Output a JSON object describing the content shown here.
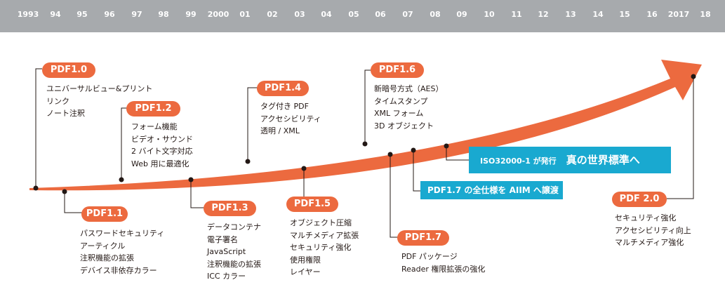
{
  "years": [
    "1993",
    "94",
    "95",
    "96",
    "97",
    "98",
    "99",
    "2000",
    "01",
    "02",
    "03",
    "04",
    "05",
    "06",
    "07",
    "08",
    "09",
    "10",
    "11",
    "12",
    "13",
    "14",
    "15",
    "16",
    "2017",
    "18"
  ],
  "versions": [
    {
      "label": "PDF1.0",
      "features": [
        "ユニバーサルビュー&プリント",
        "リンク",
        "ノート注釈"
      ]
    },
    {
      "label": "PDF1.1",
      "features": [
        "パスワードセキュリティ",
        "アーティクル",
        "注釈機能の拡張",
        "デバイス非依存カラー"
      ]
    },
    {
      "label": "PDF1.2",
      "features": [
        "フォーム機能",
        "ビデオ・サウンド",
        "2 バイト文字対応",
        "Web 用に最適化"
      ]
    },
    {
      "label": "PDF1.3",
      "features": [
        "データコンテナ",
        "電子署名",
        "JavaScript",
        "注釈機能の拡張",
        "ICC カラー"
      ]
    },
    {
      "label": "PDF1.4",
      "features": [
        "タグ付き PDF",
        "アクセシビリティ",
        "透明 / XML"
      ]
    },
    {
      "label": "PDF1.5",
      "features": [
        "オブジェクト圧縮",
        "マルチメディア拡張",
        "セキュリティ強化",
        "使用権限",
        "レイヤー"
      ]
    },
    {
      "label": "PDF1.6",
      "features": [
        "新暗号方式（AES）",
        "タイムスタンプ",
        "XML フォーム",
        "3D オブジェクト"
      ]
    },
    {
      "label": "PDF1.7",
      "features": [
        "PDF パッケージ",
        "Reader 権限拡張の強化"
      ]
    },
    {
      "label": "PDF 2.0",
      "features": [
        "セキュリティ強化",
        "アクセシビリティ向上",
        "マルチメディア強化"
      ]
    }
  ],
  "callouts": {
    "aiim": "PDF1.7 の全仕様を AIIM へ譲渡",
    "iso_small": "ISO32000-1 が発行",
    "iso_big": "真の世界標準へ"
  },
  "colors": {
    "header": "#a7aaad",
    "accent": "#ec6a3f",
    "callout": "#19a9d0",
    "text": "#231815"
  }
}
